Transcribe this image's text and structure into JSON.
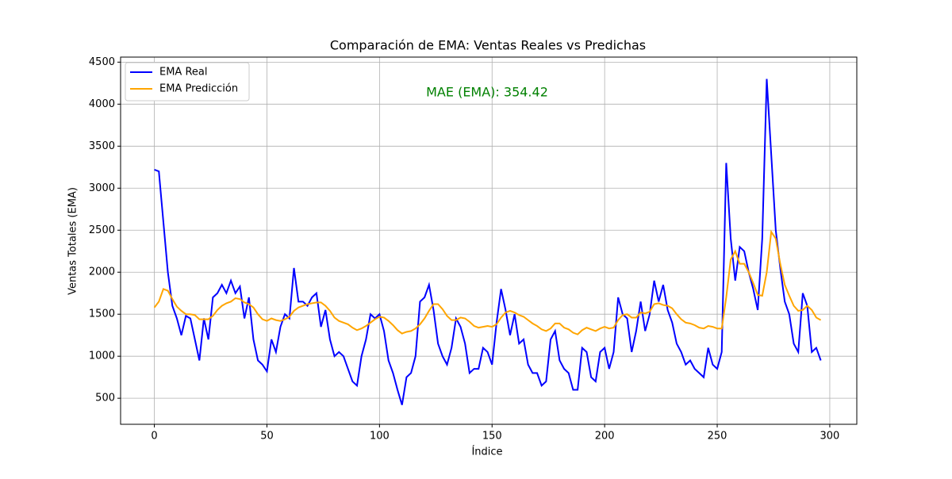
{
  "chart_data": {
    "type": "line",
    "title": "Comparación de EMA: Ventas Reales vs Predichas",
    "xlabel": "Índice",
    "ylabel": "Ventas Totales (EMA)",
    "annotation": {
      "text": "MAE (EMA): 354.42",
      "color": "#008000"
    },
    "x": [
      0,
      2,
      4,
      6,
      8,
      10,
      12,
      14,
      16,
      18,
      20,
      22,
      24,
      26,
      28,
      30,
      32,
      34,
      36,
      38,
      40,
      42,
      44,
      46,
      48,
      50,
      52,
      54,
      56,
      58,
      60,
      62,
      64,
      66,
      68,
      70,
      72,
      74,
      76,
      78,
      80,
      82,
      84,
      86,
      88,
      90,
      92,
      94,
      96,
      98,
      100,
      102,
      104,
      106,
      108,
      110,
      112,
      114,
      116,
      118,
      120,
      122,
      124,
      126,
      128,
      130,
      132,
      134,
      136,
      138,
      140,
      142,
      144,
      146,
      148,
      150,
      152,
      154,
      156,
      158,
      160,
      162,
      164,
      166,
      168,
      170,
      172,
      174,
      176,
      178,
      180,
      182,
      184,
      186,
      188,
      190,
      192,
      194,
      196,
      198,
      200,
      202,
      204,
      206,
      208,
      210,
      212,
      214,
      216,
      218,
      220,
      222,
      224,
      226,
      228,
      230,
      232,
      234,
      236,
      238,
      240,
      242,
      244,
      246,
      248,
      250,
      252,
      254,
      256,
      258,
      260,
      262,
      264,
      266,
      268,
      270,
      272,
      274,
      276,
      278,
      280,
      282,
      284,
      286,
      288,
      290,
      292,
      294,
      296
    ],
    "series": [
      {
        "name": "EMA Real",
        "color": "#0000ff",
        "values": [
          3220,
          3200,
          2600,
          2000,
          1600,
          1450,
          1250,
          1480,
          1450,
          1200,
          950,
          1450,
          1200,
          1700,
          1750,
          1850,
          1750,
          1900,
          1750,
          1830,
          1450,
          1700,
          1200,
          950,
          900,
          820,
          1200,
          1050,
          1350,
          1500,
          1450,
          2050,
          1650,
          1650,
          1600,
          1700,
          1750,
          1350,
          1550,
          1200,
          1000,
          1050,
          1000,
          850,
          700,
          650,
          1000,
          1200,
          1500,
          1450,
          1500,
          1300,
          950,
          800,
          600,
          420,
          750,
          800,
          1000,
          1650,
          1700,
          1850,
          1550,
          1150,
          1000,
          900,
          1100,
          1450,
          1350,
          1150,
          800,
          850,
          850,
          1100,
          1050,
          900,
          1400,
          1800,
          1550,
          1250,
          1500,
          1150,
          1200,
          900,
          800,
          800,
          650,
          700,
          1200,
          1300,
          950,
          850,
          800,
          600,
          600,
          1100,
          1050,
          750,
          700,
          1050,
          1100,
          850,
          1050,
          1700,
          1500,
          1450,
          1050,
          1300,
          1650,
          1300,
          1500,
          1900,
          1650,
          1850,
          1550,
          1400,
          1150,
          1050,
          900,
          950,
          850,
          800,
          750,
          1100,
          900,
          850,
          1050,
          3300,
          2400,
          1900,
          2300,
          2250,
          2000,
          1800,
          1550,
          2400,
          4300,
          3400,
          2500,
          2050,
          1650,
          1500,
          1150,
          1050,
          1750,
          1600,
          1050,
          1100,
          950
        ]
      },
      {
        "name": "EMA Predicción",
        "color": "#ffa500",
        "values": [
          1580,
          1650,
          1800,
          1780,
          1680,
          1590,
          1540,
          1500,
          1500,
          1490,
          1440,
          1440,
          1440,
          1480,
          1550,
          1600,
          1630,
          1650,
          1690,
          1680,
          1640,
          1620,
          1580,
          1500,
          1440,
          1420,
          1450,
          1430,
          1420,
          1440,
          1470,
          1540,
          1580,
          1600,
          1620,
          1630,
          1640,
          1640,
          1600,
          1540,
          1460,
          1420,
          1400,
          1380,
          1340,
          1310,
          1330,
          1360,
          1400,
          1440,
          1470,
          1460,
          1420,
          1370,
          1310,
          1270,
          1290,
          1300,
          1330,
          1380,
          1450,
          1540,
          1620,
          1620,
          1560,
          1480,
          1430,
          1430,
          1460,
          1450,
          1410,
          1360,
          1340,
          1350,
          1360,
          1350,
          1380,
          1460,
          1520,
          1540,
          1520,
          1490,
          1470,
          1430,
          1390,
          1360,
          1320,
          1300,
          1330,
          1390,
          1390,
          1340,
          1320,
          1280,
          1260,
          1310,
          1340,
          1320,
          1300,
          1330,
          1350,
          1330,
          1340,
          1430,
          1490,
          1500,
          1460,
          1460,
          1520,
          1510,
          1530,
          1620,
          1630,
          1610,
          1600,
          1570,
          1500,
          1440,
          1400,
          1390,
          1370,
          1340,
          1330,
          1360,
          1350,
          1330,
          1330,
          1700,
          2150,
          2250,
          2100,
          2100,
          2000,
          1870,
          1730,
          1720,
          2000,
          2480,
          2400,
          2100,
          1850,
          1720,
          1600,
          1540,
          1550,
          1600,
          1550,
          1460,
          1430
        ]
      }
    ],
    "xlim": [
      -15,
      312
    ],
    "xticks": [
      0,
      50,
      100,
      150,
      200,
      250,
      300
    ],
    "ylim": [
      190,
      4560
    ],
    "yticks": [
      500,
      1000,
      1500,
      2000,
      2500,
      3000,
      3500,
      4000,
      4500
    ],
    "grid": true,
    "legend": "upper-left"
  }
}
